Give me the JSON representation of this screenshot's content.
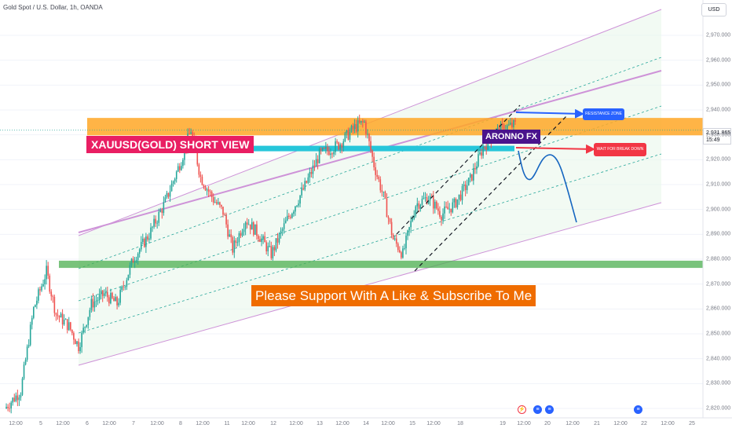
{
  "header": {
    "symbol": "Gold Spot / U.S. Dollar, 1h, OANDA",
    "currency": "USD"
  },
  "price_tag": {
    "price": "2,931.865",
    "countdown": "15:49"
  },
  "annotations": {
    "title": "XAUUSD(GOLD) SHORT VIEW",
    "support": "Please Support With A Like & Subscribe To Me",
    "brand": "ARONNO FX",
    "resistance": "RESISTANCE ZONE",
    "wait": "WAIT FOR BREAK DOWN"
  },
  "colors": {
    "up": "#26a69a",
    "down": "#ef5350",
    "resistance_zone": "#ffa726",
    "support_zone": "#4caf50",
    "channel_fill": "#e8f5e9",
    "channel_line": "#ce93d8",
    "breakdown_level": "#26c6da",
    "projection": "#1565c0"
  },
  "events": [
    "bolt-icon",
    "us-flag-icon",
    "us-flag-icon",
    "us-flag-icon"
  ],
  "chart_data": {
    "type": "candlestick",
    "title": "Gold Spot / U.S. Dollar, 1h, OANDA",
    "ylim": [
      2815,
      2978
    ],
    "y_ticks": [
      2820,
      2830,
      2840,
      2850,
      2860,
      2870,
      2880,
      2890,
      2900,
      2910,
      2920,
      2930,
      2940,
      2950,
      2960,
      2970
    ],
    "y_tick_labels": [
      "2,820.000",
      "2,830.000",
      "2,840.000",
      "2,850.000",
      "2,860.000",
      "2,870.000",
      "2,880.000",
      "2,890.000",
      "2,900.000",
      "2,910.000",
      "2,920.000",
      "2,930.000",
      "2,940.000",
      "2,950.000",
      "2,960.000",
      "2,970.000"
    ],
    "x_tick_labels": [
      "12:00",
      "5",
      "12:00",
      "6",
      "12:00",
      "7",
      "12:00",
      "8",
      "12:00",
      "11",
      "12:00",
      "12",
      "12:00",
      "13",
      "12:00",
      "14",
      "12:00",
      "15",
      "12:00",
      "18",
      "19",
      "12:00",
      "20",
      "12:00",
      "21",
      "12:00",
      "22",
      "12:00",
      "25"
    ],
    "last_price": 2931.865,
    "zones": {
      "resistance": [
        2929.8,
        2936.8
      ],
      "support": [
        2876.5,
        2879.4
      ],
      "breakdown_level": 2924.5
    },
    "path": [
      [
        0,
        2820
      ],
      [
        10,
        2827
      ],
      [
        18,
        2860
      ],
      [
        26,
        2875
      ],
      [
        32,
        2858
      ],
      [
        40,
        2853
      ],
      [
        46,
        2845
      ],
      [
        54,
        2862
      ],
      [
        62,
        2866
      ],
      [
        70,
        2862
      ],
      [
        80,
        2880
      ],
      [
        90,
        2890
      ],
      [
        100,
        2903
      ],
      [
        110,
        2920
      ],
      [
        116,
        2932
      ],
      [
        122,
        2913
      ],
      [
        130,
        2904
      ],
      [
        136,
        2899
      ],
      [
        142,
        2884
      ],
      [
        150,
        2896
      ],
      [
        158,
        2890
      ],
      [
        166,
        2882
      ],
      [
        176,
        2896
      ],
      [
        186,
        2908
      ],
      [
        196,
        2922
      ],
      [
        208,
        2926
      ],
      [
        218,
        2933
      ],
      [
        224,
        2935
      ],
      [
        230,
        2918
      ],
      [
        236,
        2905
      ],
      [
        242,
        2888
      ],
      [
        248,
        2882
      ],
      [
        256,
        2902
      ],
      [
        264,
        2905
      ],
      [
        272,
        2898
      ],
      [
        280,
        2902
      ],
      [
        290,
        2912
      ],
      [
        298,
        2925
      ],
      [
        306,
        2931
      ],
      [
        312,
        2933
      ],
      [
        318,
        2934
      ]
    ],
    "projection": [
      2931.9,
      2925,
      2920,
      2912,
      2915,
      2920,
      2915,
      2895
    ]
  }
}
